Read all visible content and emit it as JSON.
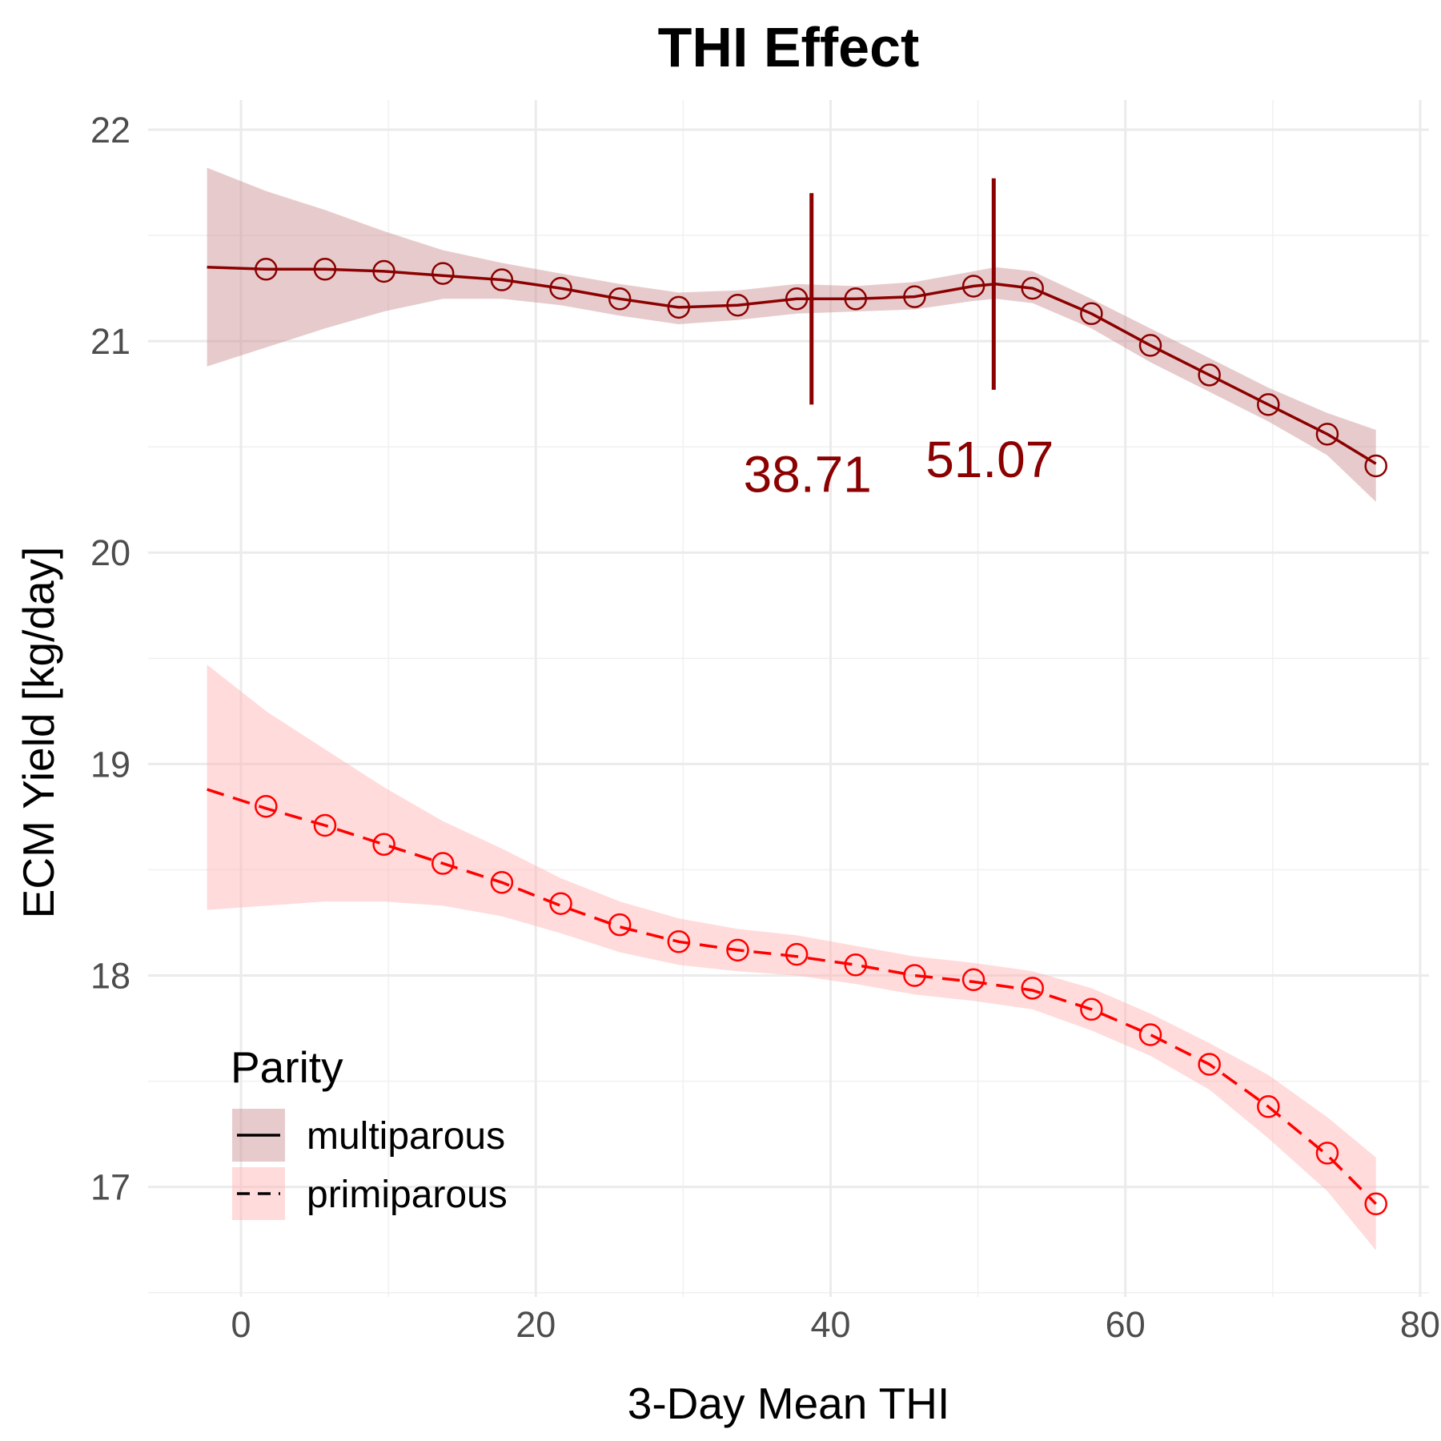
{
  "chart_data": {
    "type": "line",
    "title": "THI Effect",
    "xlabel": "3-Day Mean THI",
    "ylabel": "ECM Yield [kg/day]",
    "xlim": [
      -6.3,
      80.6
    ],
    "ylim": [
      16.48,
      22.14
    ],
    "x_ticks": [
      0,
      20,
      40,
      60,
      80
    ],
    "y_ticks": [
      17,
      18,
      19,
      20,
      21,
      22
    ],
    "grid": true,
    "legend": {
      "title": "Parity",
      "position": "bottom-left"
    },
    "series": [
      {
        "name": "multiparous",
        "color": "#8b0000",
        "fill": "#c98c8f",
        "line_style": "solid",
        "line_x": [
          -2.3,
          1.7,
          5.7,
          9.7,
          13.7,
          17.7,
          21.7,
          25.7,
          29.7,
          33.7,
          37.7,
          41.7,
          45.7,
          49.7,
          51.2,
          53.7,
          57.7,
          61.7,
          65.7,
          69.7,
          73.7,
          77.0
        ],
        "line_y": [
          21.35,
          21.34,
          21.34,
          21.33,
          21.31,
          21.29,
          21.25,
          21.2,
          21.16,
          21.17,
          21.2,
          21.2,
          21.21,
          21.26,
          21.27,
          21.25,
          21.13,
          20.98,
          20.84,
          20.7,
          20.56,
          20.42
        ],
        "ci_lower": [
          20.88,
          20.97,
          21.06,
          21.14,
          21.2,
          21.2,
          21.17,
          21.12,
          21.08,
          21.1,
          21.13,
          21.14,
          21.15,
          21.19,
          21.2,
          21.18,
          21.06,
          20.9,
          20.76,
          20.62,
          20.46,
          20.24
        ],
        "ci_upper": [
          21.82,
          21.71,
          21.62,
          21.52,
          21.43,
          21.37,
          21.32,
          21.27,
          21.23,
          21.24,
          21.27,
          21.26,
          21.28,
          21.33,
          21.35,
          21.33,
          21.2,
          21.06,
          20.92,
          20.78,
          20.66,
          20.58
        ],
        "marker_x": [
          1.7,
          5.7,
          9.7,
          13.7,
          17.7,
          21.7,
          25.7,
          29.7,
          33.7,
          37.7,
          41.7,
          45.7,
          49.7,
          53.7,
          57.7,
          61.7,
          65.7,
          69.7,
          73.7,
          77.0
        ],
        "marker_y": [
          21.34,
          21.34,
          21.33,
          21.32,
          21.29,
          21.25,
          21.2,
          21.16,
          21.17,
          21.2,
          21.2,
          21.21,
          21.26,
          21.25,
          21.13,
          20.98,
          20.84,
          20.7,
          20.56,
          20.41
        ]
      },
      {
        "name": "primiparous",
        "color": "#ff0000",
        "fill": "#ffb0b0",
        "line_style": "dashed",
        "line_x": [
          -2.3,
          1.7,
          5.7,
          9.7,
          13.7,
          17.7,
          21.7,
          25.7,
          29.7,
          33.7,
          37.7,
          41.7,
          45.7,
          49.7,
          53.7,
          57.7,
          61.7,
          65.7,
          69.7,
          73.7,
          77.0
        ],
        "line_y": [
          18.88,
          18.79,
          18.71,
          18.62,
          18.53,
          18.44,
          18.33,
          18.23,
          18.16,
          18.12,
          18.09,
          18.05,
          18.0,
          17.97,
          17.93,
          17.84,
          17.72,
          17.58,
          17.38,
          17.15,
          16.92
        ],
        "ci_lower": [
          18.31,
          18.33,
          18.35,
          18.35,
          18.33,
          18.28,
          18.2,
          18.11,
          18.05,
          18.02,
          18.0,
          17.96,
          17.91,
          17.88,
          17.84,
          17.74,
          17.62,
          17.46,
          17.23,
          16.98,
          16.7
        ],
        "ci_upper": [
          19.47,
          19.25,
          19.07,
          18.89,
          18.73,
          18.6,
          18.46,
          18.35,
          18.27,
          18.22,
          18.19,
          18.14,
          18.09,
          18.06,
          18.02,
          17.94,
          17.82,
          17.68,
          17.53,
          17.33,
          17.14
        ],
        "marker_x": [
          1.7,
          5.7,
          9.7,
          13.7,
          17.7,
          21.7,
          25.7,
          29.7,
          33.7,
          37.7,
          41.7,
          45.7,
          49.7,
          53.7,
          57.7,
          61.7,
          65.7,
          69.7,
          73.7,
          77.0
        ],
        "marker_y": [
          18.8,
          18.71,
          18.62,
          18.53,
          18.44,
          18.34,
          18.24,
          18.16,
          18.12,
          18.1,
          18.05,
          18.0,
          17.98,
          17.94,
          17.84,
          17.72,
          17.58,
          17.38,
          17.16,
          16.92
        ]
      }
    ],
    "vlines": [
      {
        "x": 38.71,
        "label": "38.71",
        "y_from": 20.7,
        "y_to": 21.7,
        "label_y": 20.37,
        "color": "#8b0000"
      },
      {
        "x": 51.07,
        "label": "51.07",
        "y_from": 20.77,
        "y_to": 21.77,
        "label_y": 20.44,
        "color": "#8b0000"
      }
    ]
  }
}
